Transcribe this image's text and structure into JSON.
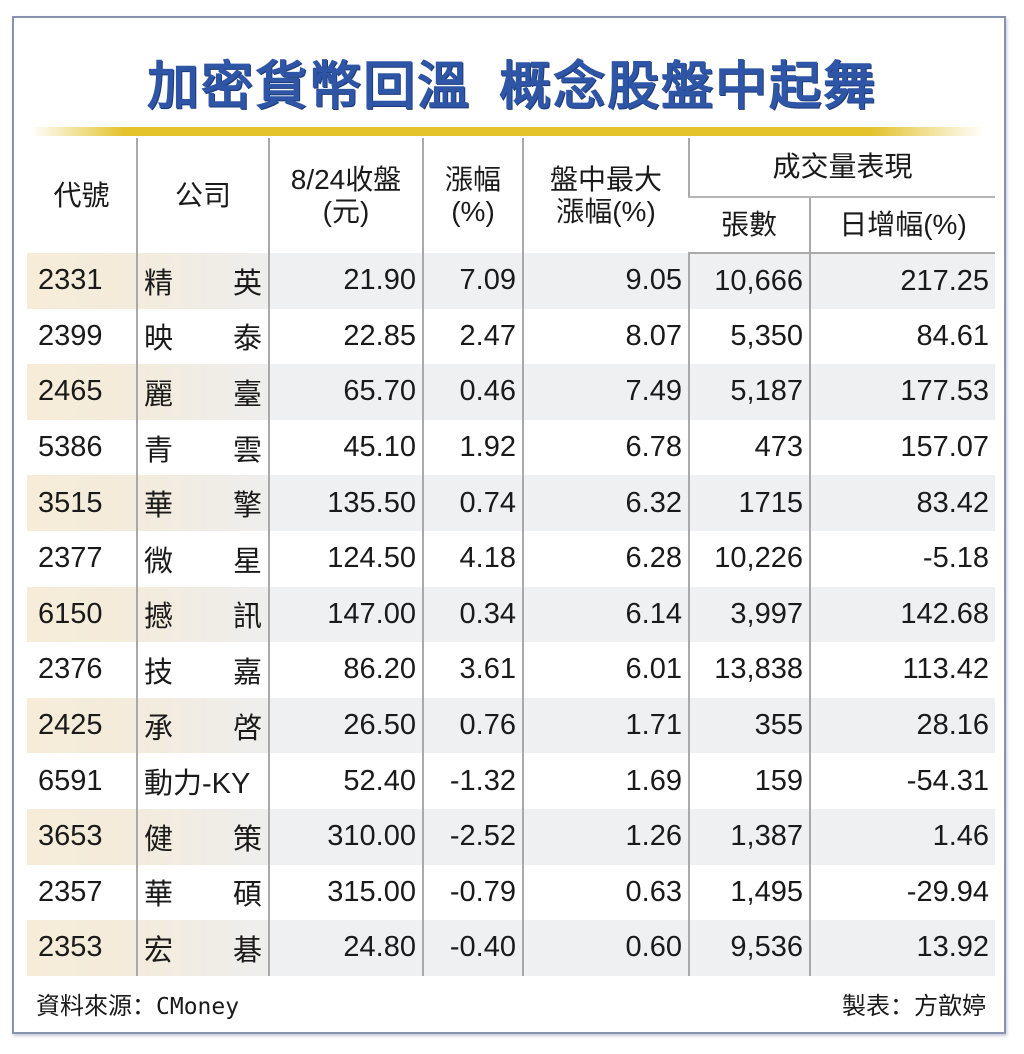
{
  "title": {
    "part1": "加密貨幣回溫",
    "part2": "概念股盤中起舞"
  },
  "headers": {
    "code": "代號",
    "company": "公司",
    "close_line1": "8/24收盤",
    "close_line2": "(元)",
    "change_line1": "漲幅",
    "change_line2": "(%)",
    "max_line1": "盤中最大",
    "max_line2": "漲幅(%)",
    "volume_group": "成交量表現",
    "volume_lots": "張數",
    "volume_daily_increase": "日增幅(%)"
  },
  "rows": [
    {
      "code": "2331",
      "name1": "精",
      "name2": "英",
      "close": "21.90",
      "change": "7.09",
      "max": "9.05",
      "lots": "10,666",
      "inc": "217.25"
    },
    {
      "code": "2399",
      "name1": "映",
      "name2": "泰",
      "close": "22.85",
      "change": "2.47",
      "max": "8.07",
      "lots": "5,350",
      "inc": "84.61"
    },
    {
      "code": "2465",
      "name1": "麗",
      "name2": "臺",
      "close": "65.70",
      "change": "0.46",
      "max": "7.49",
      "lots": "5,187",
      "inc": "177.53"
    },
    {
      "code": "5386",
      "name1": "青",
      "name2": "雲",
      "close": "45.10",
      "change": "1.92",
      "max": "6.78",
      "lots": "473",
      "inc": "157.07"
    },
    {
      "code": "3515",
      "name1": "華",
      "name2": "擎",
      "close": "135.50",
      "change": "0.74",
      "max": "6.32",
      "lots": "1715",
      "inc": "83.42"
    },
    {
      "code": "2377",
      "name1": "微",
      "name2": "星",
      "close": "124.50",
      "change": "4.18",
      "max": "6.28",
      "lots": "10,226",
      "inc": "-5.18"
    },
    {
      "code": "6150",
      "name1": "撼",
      "name2": "訊",
      "close": "147.00",
      "change": "0.34",
      "max": "6.14",
      "lots": "3,997",
      "inc": "142.68"
    },
    {
      "code": "2376",
      "name1": "技",
      "name2": "嘉",
      "close": "86.20",
      "change": "3.61",
      "max": "6.01",
      "lots": "13,838",
      "inc": "113.42"
    },
    {
      "code": "2425",
      "name1": "承",
      "name2": "啓",
      "close": "26.50",
      "change": "0.76",
      "max": "1.71",
      "lots": "355",
      "inc": "28.16"
    },
    {
      "code": "6591",
      "name1": "動力-KY",
      "name2": "",
      "close": "52.40",
      "change": "-1.32",
      "max": "1.69",
      "lots": "159",
      "inc": "-54.31"
    },
    {
      "code": "3653",
      "name1": "健",
      "name2": "策",
      "close": "310.00",
      "change": "-2.52",
      "max": "1.26",
      "lots": "1,387",
      "inc": "1.46"
    },
    {
      "code": "2357",
      "name1": "華",
      "name2": "碩",
      "close": "315.00",
      "change": "-0.79",
      "max": "0.63",
      "lots": "1,495",
      "inc": "-29.94"
    },
    {
      "code": "2353",
      "name1": "宏",
      "name2": "碁",
      "close": "24.80",
      "change": "-0.40",
      "max": "0.60",
      "lots": "9,536",
      "inc": "13.92"
    }
  ],
  "footer": {
    "source_label": "資料來源：",
    "source_value": "CMoney",
    "maker": "製表：方歆婷"
  },
  "colors": {
    "title": "#2e55a6",
    "rule": "#e3c22a",
    "frame": "#8791b0",
    "shade_row": "#eef0f2",
    "shade_code": "#f6ecd8"
  }
}
